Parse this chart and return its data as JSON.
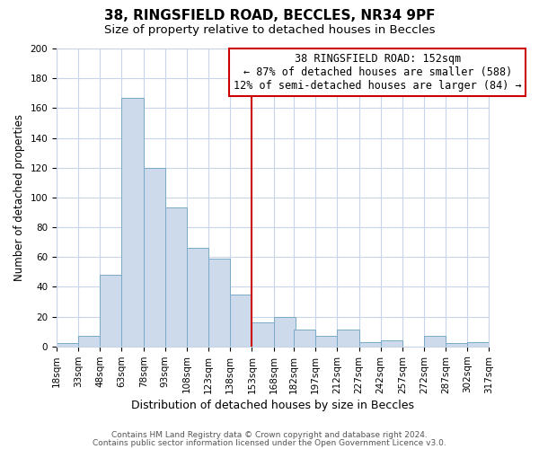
{
  "title": "38, RINGSFIELD ROAD, BECCLES, NR34 9PF",
  "subtitle": "Size of property relative to detached houses in Beccles",
  "xlabel": "Distribution of detached houses by size in Beccles",
  "ylabel": "Number of detached properties",
  "bin_edges": [
    18,
    33,
    48,
    63,
    78,
    93,
    108,
    123,
    138,
    153,
    168,
    182,
    197,
    212,
    227,
    242,
    257,
    272,
    287,
    302,
    317
  ],
  "bar_heights": [
    2,
    7,
    48,
    167,
    120,
    93,
    66,
    59,
    35,
    16,
    20,
    11,
    7,
    11,
    3,
    4,
    0,
    7,
    2,
    3
  ],
  "bar_color": "#cddaeb",
  "bar_edge_color": "#7aaac8",
  "vertical_line_x": 153,
  "vertical_line_color": "#cc0000",
  "annotation_line1": "38 RINGSFIELD ROAD: 152sqm",
  "annotation_line2": "← 87% of detached houses are smaller (588)",
  "annotation_line3": "12% of semi-detached houses are larger (84) →",
  "annotation_box_color": "#cc0000",
  "annotation_box_bg": "#ffffff",
  "ylim": [
    0,
    200
  ],
  "yticks": [
    0,
    20,
    40,
    60,
    80,
    100,
    120,
    140,
    160,
    180,
    200
  ],
  "background_color": "#ffffff",
  "grid_color": "#c8d4e8",
  "footer_line1": "Contains HM Land Registry data © Crown copyright and database right 2024.",
  "footer_line2": "Contains public sector information licensed under the Open Government Licence v3.0.",
  "title_fontsize": 11,
  "subtitle_fontsize": 9.5,
  "xlabel_fontsize": 9,
  "ylabel_fontsize": 8.5,
  "tick_fontsize": 7.5,
  "annotation_fontsize": 8.5,
  "footer_fontsize": 6.5
}
